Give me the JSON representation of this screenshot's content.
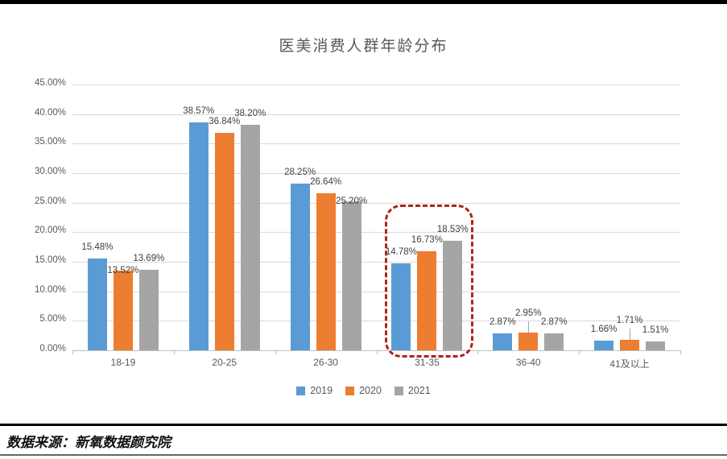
{
  "chart_data": {
    "type": "bar",
    "title": "医美消费人群年龄分布",
    "categories": [
      "18-19",
      "20-25",
      "26-30",
      "31-35",
      "36-40",
      "41及以上"
    ],
    "series": [
      {
        "name": "2019",
        "color": "#5b9bd5",
        "values": [
          15.48,
          38.57,
          28.25,
          14.78,
          2.87,
          1.66
        ]
      },
      {
        "name": "2020",
        "color": "#ed7d31",
        "values": [
          13.52,
          36.84,
          26.64,
          16.73,
          2.95,
          1.71
        ]
      },
      {
        "name": "2021",
        "color": "#a5a5a5",
        "values": [
          13.69,
          38.2,
          25.2,
          18.53,
          2.87,
          1.51
        ]
      }
    ],
    "y_axis": {
      "min": 0,
      "max": 45,
      "step": 5,
      "tick_labels": [
        "0.00%",
        "5.00%",
        "10.00%",
        "15.00%",
        "20.00%",
        "25.00%",
        "30.00%",
        "35.00%",
        "40.00%",
        "45.00%"
      ]
    },
    "data_label_format": "0.00%",
    "grid": true,
    "legend_position": "bottom",
    "highlight_box": {
      "category": "31-35",
      "color": "#b02318",
      "style": "dashed"
    },
    "leader_lines": [
      {
        "category": "36-40",
        "series": "2020"
      },
      {
        "category": "41及以上",
        "series": "2020"
      }
    ]
  },
  "footer": {
    "source_label": "数据来源：新氧数据颜究院"
  }
}
